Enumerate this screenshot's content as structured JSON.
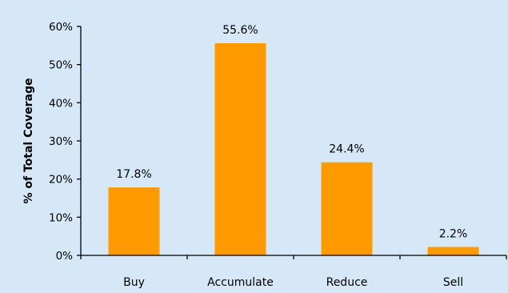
{
  "colors": {
    "background": "#d6e8f7",
    "bar": "#ff9900",
    "axis": "#000000"
  },
  "chart_data": {
    "type": "bar",
    "title": "",
    "xlabel": "",
    "ylabel": "% of Total Coverage",
    "categories": [
      "Buy",
      "Accumulate",
      "Reduce",
      "Sell"
    ],
    "values": [
      17.8,
      55.6,
      24.4,
      2.2
    ],
    "data_labels": [
      "17.8%",
      "55.6%",
      "24.4%",
      "2.2%"
    ],
    "ylim": [
      0,
      60
    ],
    "yticks": [
      0,
      10,
      20,
      30,
      40,
      50,
      60
    ],
    "ytick_labels": [
      "0%",
      "10%",
      "20%",
      "30%",
      "40%",
      "50%",
      "60%"
    ],
    "grid": false,
    "legend": "none"
  }
}
